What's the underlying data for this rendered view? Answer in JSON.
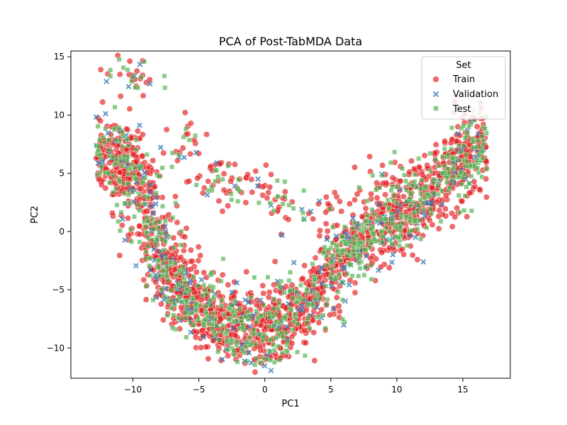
{
  "chart_data": {
    "type": "scatter",
    "title": "PCA of Post-TabMDA Data",
    "xlabel": "PC1",
    "ylabel": "PC2",
    "xlim": [
      -14.7,
      18.6
    ],
    "ylim": [
      -12.6,
      15.5
    ],
    "xticks": [
      -10,
      -5,
      0,
      5,
      10,
      15
    ],
    "yticks": [
      -10,
      -5,
      0,
      5,
      10,
      15
    ],
    "legend": {
      "title": "Set",
      "placement": "top-right"
    },
    "series": [
      {
        "name": "Train",
        "marker": "circle",
        "color": "#e41a1c",
        "alpha": 0.65,
        "count": 1800,
        "seed": 11
      },
      {
        "name": "Validation",
        "marker": "x",
        "color": "#377eb8",
        "alpha": 0.65,
        "count": 250,
        "seed": 23
      },
      {
        "name": "Test",
        "marker": "square",
        "color": "#4daf4a",
        "alpha": 0.65,
        "count": 750,
        "seed": 37
      }
    ],
    "distribution": {
      "curve": [
        {
          "x": -12.5,
          "y": 7.5
        },
        {
          "x": -11.0,
          "y": 6.5
        },
        {
          "x": -9.5,
          "y": 3.0
        },
        {
          "x": -8.0,
          "y": -1.5
        },
        {
          "x": -6.5,
          "y": -5.0
        },
        {
          "x": -5.0,
          "y": -6.8
        },
        {
          "x": -3.0,
          "y": -7.8
        },
        {
          "x": -1.0,
          "y": -8.3
        },
        {
          "x": 1.0,
          "y": -8.0
        },
        {
          "x": 3.0,
          "y": -6.5
        },
        {
          "x": 5.0,
          "y": -3.5
        },
        {
          "x": 7.0,
          "y": -0.8
        },
        {
          "x": 9.0,
          "y": 0.5
        },
        {
          "x": 11.0,
          "y": 2.0
        },
        {
          "x": 13.0,
          "y": 4.0
        },
        {
          "x": 15.0,
          "y": 6.0
        },
        {
          "x": 16.5,
          "y": 7.5
        }
      ],
      "spread_x": 0.9,
      "spread_y": 1.6,
      "noise_fraction": 0.07,
      "noise_points": [
        {
          "x": -6.0,
          "y": 7.7
        },
        {
          "x": -4.5,
          "y": 4.2
        },
        {
          "x": -3.5,
          "y": 4.5
        },
        {
          "x": -2.5,
          "y": 3.0
        },
        {
          "x": -1.0,
          "y": 3.8
        },
        {
          "x": 0.8,
          "y": 3.3
        },
        {
          "x": 2.5,
          "y": 1.7
        },
        {
          "x": 4.8,
          "y": 2.0
        },
        {
          "x": 9.0,
          "y": 5.0
        },
        {
          "x": -10.5,
          "y": 14.0
        },
        {
          "x": -9.5,
          "y": 13.4
        },
        {
          "x": 0.5,
          "y": -11.3
        }
      ]
    }
  }
}
